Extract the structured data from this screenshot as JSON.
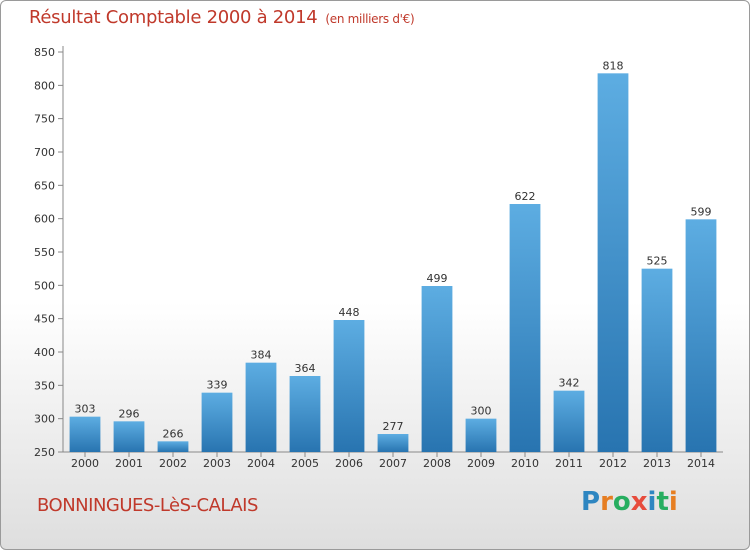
{
  "title": "Résultat Comptable 2000 à 2014",
  "subtitle": "(en milliers d'€)",
  "commune": "BONNINGUES-LèS-CALAIS",
  "logo": {
    "letters": [
      "P",
      "r",
      "o",
      "x",
      "i",
      "t",
      "i"
    ],
    "colors": [
      "#2e86c1",
      "#e67e22",
      "#27ae60",
      "#e74c3c",
      "#2e86c1",
      "#27ae60",
      "#e67e22"
    ]
  },
  "colors": {
    "bar_light": "#5dade2",
    "bar_dark": "#2874b0",
    "title": "#c0392b"
  },
  "chart_data": {
    "type": "bar",
    "title": "Résultat Comptable 2000 à 2014",
    "subtitle": "(en milliers d'€)",
    "xlabel": "",
    "ylabel": "",
    "categories": [
      "2000",
      "2001",
      "2002",
      "2003",
      "2004",
      "2005",
      "2006",
      "2007",
      "2008",
      "2009",
      "2010",
      "2011",
      "2012",
      "2013",
      "2014"
    ],
    "values": [
      303,
      296,
      266,
      339,
      384,
      364,
      448,
      277,
      499,
      300,
      622,
      342,
      818,
      525,
      599
    ],
    "ylim": [
      250,
      850
    ],
    "yticks": [
      250,
      300,
      350,
      400,
      450,
      500,
      550,
      600,
      650,
      700,
      750,
      800,
      850
    ],
    "grid": false,
    "data_labels": true
  }
}
